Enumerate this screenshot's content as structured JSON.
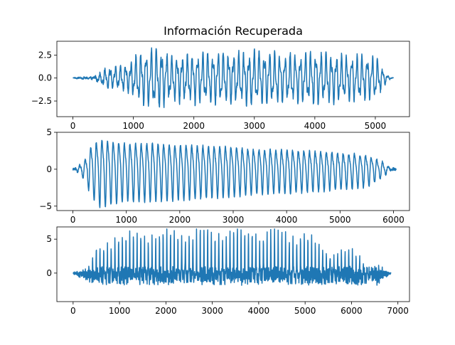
{
  "chart_data": [
    {
      "type": "line",
      "title": "Información Recuperada",
      "xlabel": "",
      "ylabel": "",
      "xlim": [
        -265,
        5565
      ],
      "ylim": [
        -4.2,
        4.0
      ],
      "xticks": [
        0,
        1000,
        2000,
        3000,
        4000,
        5000
      ],
      "xtick_labels": [
        "0",
        "1000",
        "2000",
        "3000",
        "4000",
        "5000"
      ],
      "yticks": [
        -2.5,
        0.0,
        2.5
      ],
      "ytick_labels": [
        "−2.5",
        "0.0",
        "2.5"
      ],
      "grid": false,
      "color": "#1f77b4",
      "series_summary": {
        "x": [
          0,
          5300
        ],
        "approx_period": 85,
        "amplitude_range": [
          -3.9,
          3.6
        ],
        "description_points": [
          [
            0,
            0.3
          ],
          [
            300,
            0.0
          ],
          [
            600,
            1.2
          ],
          [
            900,
            -1.5
          ],
          [
            1100,
            2.8
          ],
          [
            1400,
            -3.7
          ],
          [
            1600,
            2.6
          ],
          [
            2000,
            2.8
          ],
          [
            2300,
            -3.0
          ],
          [
            2800,
            2.9
          ],
          [
            3000,
            -3.2
          ],
          [
            3500,
            2.7
          ],
          [
            4000,
            -3.0
          ],
          [
            4500,
            2.6
          ],
          [
            5000,
            -2.5
          ],
          [
            5300,
            0.2
          ]
        ]
      }
    },
    {
      "type": "line",
      "title": "",
      "xlabel": "",
      "ylabel": "",
      "xlim": [
        -300,
        6300
      ],
      "ylim": [
        -5.6,
        5.0
      ],
      "xticks": [
        0,
        1000,
        2000,
        3000,
        4000,
        5000,
        6000
      ],
      "xtick_labels": [
        "0",
        "1000",
        "2000",
        "3000",
        "4000",
        "5000",
        "6000"
      ],
      "yticks": [
        -5,
        0,
        5
      ],
      "ytick_labels": [
        "−5",
        "0",
        "5"
      ],
      "grid": false,
      "color": "#1f77b4",
      "series_summary": {
        "x": [
          0,
          6050
        ],
        "approx_period": 105,
        "amplitude_range": [
          -5.3,
          4.8
        ],
        "description_points": [
          [
            0,
            0.3
          ],
          [
            250,
            -3.0
          ],
          [
            330,
            4.8
          ],
          [
            400,
            -4.8
          ],
          [
            1000,
            4.0
          ],
          [
            1500,
            -4.0
          ],
          [
            2000,
            3.8
          ],
          [
            3000,
            3.4
          ],
          [
            3500,
            -3.0
          ],
          [
            4000,
            3.0
          ],
          [
            5000,
            2.5
          ],
          [
            5500,
            -2.2
          ],
          [
            6000,
            0.3
          ]
        ]
      }
    },
    {
      "type": "line",
      "title": "",
      "xlabel": "",
      "ylabel": "",
      "xlim": [
        -350,
        7250
      ],
      "ylim": [
        -4.2,
        6.8
      ],
      "xticks": [
        0,
        1000,
        2000,
        3000,
        4000,
        5000,
        6000,
        7000
      ],
      "xtick_labels": [
        "0",
        "1000",
        "2000",
        "3000",
        "4000",
        "5000",
        "6000",
        "7000"
      ],
      "yticks": [
        0,
        5
      ],
      "ytick_labels": [
        "0",
        "5"
      ],
      "grid": false,
      "color": "#1f77b4",
      "series_summary": {
        "x": [
          0,
          6850
        ],
        "approx_period": 80,
        "amplitude_range": [
          -3.9,
          6.5
        ],
        "description_points": [
          [
            0,
            0.2
          ],
          [
            300,
            -0.6
          ],
          [
            420,
            2.6
          ],
          [
            550,
            4.5
          ],
          [
            1000,
            5.8
          ],
          [
            1500,
            5.9
          ],
          [
            2500,
            6.3
          ],
          [
            2900,
            6.4
          ],
          [
            3600,
            6.3
          ],
          [
            4200,
            6.3
          ],
          [
            5000,
            6.0
          ],
          [
            5400,
            -3.9
          ],
          [
            6000,
            3.0
          ],
          [
            6800,
            -0.3
          ]
        ]
      }
    }
  ]
}
